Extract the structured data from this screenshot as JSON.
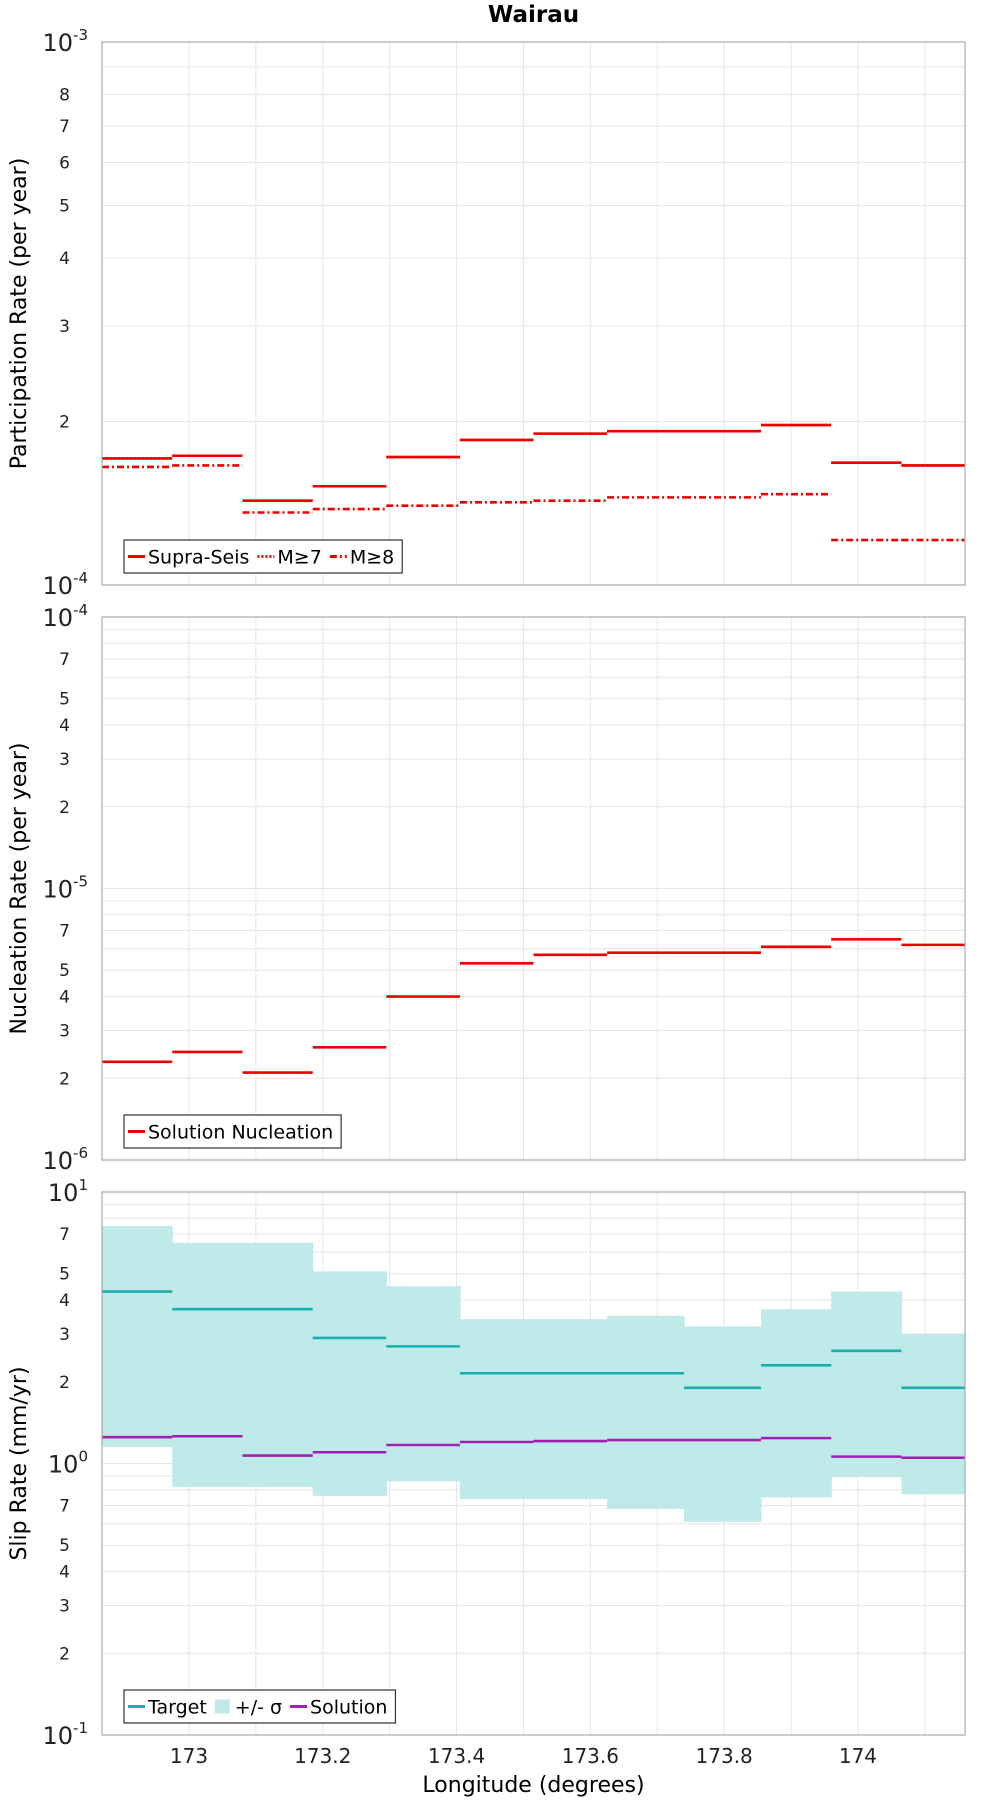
{
  "chart_data": [
    {
      "type": "line",
      "step": true,
      "title": "Wairau",
      "ylabel": "Participation Rate (per year)",
      "xlabel": "",
      "yscale": "log",
      "ylim": [
        0.0001,
        0.001
      ],
      "xlim": [
        172.87,
        174.16
      ],
      "grid": true,
      "legend_position": "bottom-left",
      "x_edges": [
        172.87,
        172.975,
        173.08,
        173.185,
        173.295,
        173.405,
        173.515,
        173.625,
        173.74,
        173.855,
        173.96,
        174.065,
        174.16
      ],
      "y_ticks": [
        {
          "exp": "-3",
          "base": "10"
        },
        {
          "label": "8"
        },
        {
          "label": "7"
        },
        {
          "label": "6"
        },
        {
          "label": "5"
        },
        {
          "label": "4"
        },
        {
          "label": "3"
        },
        {
          "label": "2"
        },
        {
          "exp": "-4",
          "base": "10"
        }
      ],
      "series": [
        {
          "name": "Supra-Seis",
          "color": "#ee0000",
          "style": "solid",
          "values": [
            0.000171,
            0.000173,
            0.000143,
            0.000152,
            0.000172,
            0.000185,
            0.00019,
            0.000192,
            0.000192,
            0.000197,
            0.000168,
            0.000166
          ]
        },
        {
          "name": "M≥7",
          "color": "#ee0000",
          "style": "dotted",
          "values": [
            0.000171,
            0.000173,
            0.000143,
            0.000152,
            0.000172,
            0.000185,
            0.00019,
            0.000192,
            0.000192,
            0.000197,
            0.000168,
            0.000166
          ]
        },
        {
          "name": "M≥8",
          "color": "#ee0000",
          "style": "dashdot",
          "values": [
            0.000165,
            0.000166,
            0.000136,
            0.000138,
            0.00014,
            0.000142,
            0.000143,
            0.000145,
            0.000145,
            0.000147,
            0.000121,
            0.000121
          ]
        }
      ]
    },
    {
      "type": "line",
      "step": true,
      "ylabel": "Nucleation Rate (per year)",
      "xlabel": "",
      "yscale": "log",
      "ylim": [
        1e-06,
        0.0001
      ],
      "grid": true,
      "legend_position": "bottom-left",
      "y_ticks": [
        {
          "exp": "-4",
          "base": "10"
        },
        {
          "label": "7"
        },
        {
          "label": "5"
        },
        {
          "label": "4"
        },
        {
          "label": "3"
        },
        {
          "label": "2"
        },
        {
          "exp": "-5",
          "base": "10"
        },
        {
          "label": "7"
        },
        {
          "label": "5"
        },
        {
          "label": "4"
        },
        {
          "label": "3"
        },
        {
          "label": "2"
        },
        {
          "exp": "-6",
          "base": "10"
        }
      ],
      "series": [
        {
          "name": "Solution Nucleation",
          "color": "#ee0000",
          "style": "solid",
          "values": [
            2.3e-06,
            2.5e-06,
            2.1e-06,
            2.6e-06,
            4e-06,
            5.3e-06,
            5.7e-06,
            5.8e-06,
            5.8e-06,
            6.1e-06,
            6.5e-06,
            6.2e-06
          ]
        }
      ]
    },
    {
      "type": "line",
      "step": true,
      "ylabel": "Slip Rate (mm/yr)",
      "xlabel": "Longitude (degrees)",
      "yscale": "log",
      "ylim": [
        0.1,
        10
      ],
      "grid": true,
      "legend_position": "bottom-left",
      "x_ticks": [
        "173",
        "173.2",
        "173.4",
        "173.6",
        "173.8",
        "174"
      ],
      "y_ticks": [
        {
          "exp": "1",
          "base": "10"
        },
        {
          "label": "7"
        },
        {
          "label": "5"
        },
        {
          "label": "4"
        },
        {
          "label": "3"
        },
        {
          "label": "2"
        },
        {
          "exp": "0",
          "base": "10"
        },
        {
          "label": "7"
        },
        {
          "label": "5"
        },
        {
          "label": "4"
        },
        {
          "label": "3"
        },
        {
          "label": "2"
        },
        {
          "exp": "-1",
          "base": "10"
        }
      ],
      "band": {
        "name": "+/- σ",
        "color": "#bfeaea",
        "upper": [
          7.5,
          6.5,
          6.5,
          5.1,
          4.5,
          3.4,
          3.4,
          3.5,
          3.2,
          3.7,
          4.3,
          3.0
        ],
        "lower": [
          1.15,
          0.82,
          0.82,
          0.76,
          0.86,
          0.74,
          0.74,
          0.68,
          0.61,
          0.75,
          0.89,
          0.77
        ]
      },
      "series": [
        {
          "name": "Target",
          "color": "#1aaeae",
          "style": "solid",
          "values": [
            4.3,
            3.7,
            3.7,
            2.9,
            2.7,
            2.15,
            2.15,
            2.15,
            1.9,
            2.3,
            2.6,
            1.9
          ]
        },
        {
          "name": "Solution",
          "color": "#a020b0",
          "style": "solid",
          "values": [
            1.25,
            1.26,
            1.07,
            1.1,
            1.17,
            1.2,
            1.21,
            1.22,
            1.22,
            1.24,
            1.06,
            1.05
          ]
        }
      ]
    }
  ]
}
